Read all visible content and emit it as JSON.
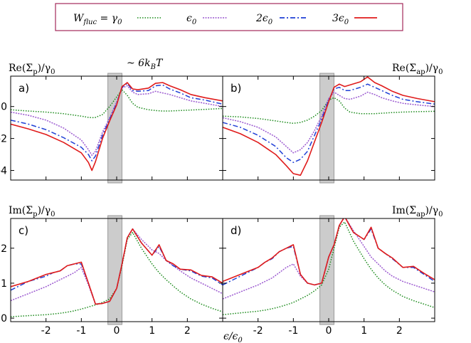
{
  "legend": {
    "entries": [
      {
        "label_main": "W",
        "label_sub": "fluc",
        "label_rest": " = γ",
        "label_rest_sub": "0",
        "series": "gamma0"
      },
      {
        "label_main": "ϵ",
        "label_sub": "0",
        "series": "eps0"
      },
      {
        "label_main": "2ϵ",
        "label_sub": "0",
        "series": "2eps0"
      },
      {
        "label_main": "3ϵ",
        "label_sub": "0",
        "series": "3eps0"
      }
    ]
  },
  "annotation": {
    "prefix": "~ 6k",
    "sub": "B",
    "suffix": "T"
  },
  "ylabels": {
    "a": {
      "main": "Re(Σ",
      "sub": "p",
      "tail": ")/γ",
      "tail_sub": "0"
    },
    "b": {
      "main": "Re(Σ",
      "sub": "ap",
      "tail": ")/γ",
      "tail_sub": "0"
    },
    "c": {
      "main": "Im(Σ",
      "sub": "p",
      "tail": ")/γ",
      "tail_sub": "0"
    },
    "d": {
      "main": "Im(Σ",
      "sub": "ap",
      "tail": ")/γ",
      "tail_sub": "0"
    }
  },
  "xlabel": {
    "main": "ϵ/ϵ",
    "sub": "0"
  },
  "panel_labels": {
    "a": "a)",
    "b": "b)",
    "c": "c)",
    "d": "d)"
  },
  "chart_data": {
    "type": "line",
    "xlim": [
      -3,
      3
    ],
    "shaded_band": [
      -0.25,
      0.15
    ],
    "series_styles": [
      {
        "key": "gamma0",
        "color": "#1a8a1a",
        "dash": "dotted"
      },
      {
        "key": "eps0",
        "color": "#9b59d0",
        "dash": "dotted-dense"
      },
      {
        "key": "2eps0",
        "color": "#1f3fd6",
        "dash": "dash-dot"
      },
      {
        "key": "3eps0",
        "color": "#e01b1b",
        "dash": "solid"
      }
    ],
    "panels": [
      {
        "id": "a",
        "ylim": [
          -4.6,
          1.9
        ],
        "yticks": [
          0,
          -2,
          -4
        ],
        "xticks": [],
        "x": [
          -3,
          -2.5,
          -2,
          -1.5,
          -1,
          -0.8,
          -0.7,
          -0.6,
          -0.4,
          -0.2,
          0,
          0.15,
          0.3,
          0.45,
          0.6,
          0.9,
          1.1,
          1.3,
          1.5,
          1.8,
          2.1,
          2.5,
          3
        ],
        "series": {
          "gamma0": [
            -0.2,
            -0.28,
            -0.35,
            -0.45,
            -0.6,
            -0.68,
            -0.7,
            -0.68,
            -0.5,
            0.0,
            0.6,
            1.05,
            0.7,
            0.2,
            -0.05,
            -0.2,
            -0.25,
            -0.28,
            -0.28,
            -0.25,
            -0.22,
            -0.18,
            -0.12
          ],
          "eps0": [
            -0.35,
            -0.55,
            -0.85,
            -1.35,
            -2.1,
            -2.7,
            -3.05,
            -2.8,
            -1.6,
            -0.7,
            0.3,
            1.15,
            1.3,
            0.9,
            0.75,
            0.8,
            0.95,
            0.85,
            0.75,
            0.55,
            0.35,
            0.2,
            0.0
          ],
          "2eps0": [
            -0.85,
            -1.1,
            -1.45,
            -1.95,
            -2.55,
            -3.0,
            -3.4,
            -3.1,
            -1.8,
            -0.8,
            0.2,
            1.2,
            1.45,
            1.0,
            0.95,
            1.0,
            1.3,
            1.35,
            1.1,
            0.85,
            0.55,
            0.4,
            0.15
          ],
          "3eps0": [
            -1.1,
            -1.4,
            -1.75,
            -2.25,
            -2.9,
            -3.5,
            -4.0,
            -3.45,
            -2.0,
            -0.9,
            0.1,
            1.25,
            1.5,
            1.1,
            1.05,
            1.15,
            1.45,
            1.5,
            1.3,
            1.05,
            0.75,
            0.55,
            0.35
          ]
        }
      },
      {
        "id": "b",
        "ylim": [
          -4.6,
          1.9
        ],
        "yticks": [],
        "xticks": [],
        "x": [
          -3,
          -2.5,
          -2,
          -1.5,
          -1.2,
          -1,
          -0.8,
          -0.6,
          -0.4,
          -0.2,
          0,
          0.15,
          0.3,
          0.45,
          0.6,
          0.9,
          1.1,
          1.3,
          1.5,
          1.8,
          2.1,
          2.5,
          3
        ],
        "series": {
          "gamma0": [
            -0.6,
            -0.65,
            -0.75,
            -0.9,
            -1.0,
            -1.05,
            -1.0,
            -0.85,
            -0.6,
            -0.25,
            0.4,
            0.55,
            0.35,
            -0.1,
            -0.35,
            -0.45,
            -0.45,
            -0.45,
            -0.42,
            -0.38,
            -0.35,
            -0.32,
            -0.3
          ],
          "eps0": [
            -0.7,
            -0.95,
            -1.3,
            -1.9,
            -2.5,
            -2.9,
            -2.7,
            -2.25,
            -1.5,
            -0.6,
            0.5,
            0.9,
            0.7,
            0.5,
            0.45,
            0.65,
            0.9,
            0.75,
            0.55,
            0.35,
            0.2,
            0.1,
            0.0
          ],
          "2eps0": [
            -1.0,
            -1.3,
            -1.8,
            -2.5,
            -3.2,
            -3.5,
            -3.3,
            -2.8,
            -1.8,
            -0.8,
            0.4,
            1.1,
            1.2,
            1.0,
            1.0,
            1.2,
            1.4,
            1.2,
            1.0,
            0.7,
            0.45,
            0.3,
            0.15
          ],
          "3eps0": [
            -1.3,
            -1.7,
            -2.25,
            -3.0,
            -3.7,
            -4.2,
            -4.3,
            -3.4,
            -2.2,
            -1.0,
            0.3,
            1.2,
            1.4,
            1.25,
            1.35,
            1.55,
            1.85,
            1.5,
            1.3,
            0.95,
            0.7,
            0.5,
            0.3
          ]
        }
      },
      {
        "id": "c",
        "ylim": [
          -0.1,
          2.85
        ],
        "yticks": [
          0,
          1,
          2
        ],
        "xticks": [
          -2,
          -1,
          0,
          1,
          2
        ],
        "x": [
          -3,
          -2.5,
          -2,
          -1.8,
          -1.6,
          -1.4,
          -1.2,
          -1.0,
          -0.8,
          -0.6,
          -0.4,
          -0.2,
          0.0,
          0.15,
          0.3,
          0.45,
          0.7,
          1.0,
          1.2,
          1.4,
          1.6,
          1.8,
          2.1,
          2.4,
          2.7,
          3.0
        ],
        "series": {
          "gamma0": [
            0.04,
            0.07,
            0.1,
            0.12,
            0.14,
            0.17,
            0.21,
            0.26,
            0.32,
            0.38,
            0.45,
            0.55,
            0.85,
            1.5,
            2.25,
            2.45,
            2.0,
            1.55,
            1.3,
            1.1,
            0.92,
            0.75,
            0.55,
            0.4,
            0.28,
            0.18
          ],
          "eps0": [
            0.5,
            0.7,
            0.9,
            1.0,
            1.1,
            1.2,
            1.3,
            1.45,
            0.95,
            0.4,
            0.42,
            0.48,
            0.85,
            1.55,
            2.3,
            2.55,
            2.25,
            1.95,
            1.85,
            1.65,
            1.5,
            1.35,
            1.15,
            1.0,
            0.85,
            0.7
          ],
          "2eps0": [
            0.8,
            1.05,
            1.2,
            1.3,
            1.35,
            1.5,
            1.55,
            1.55,
            1.0,
            0.4,
            0.42,
            0.48,
            0.85,
            1.55,
            2.3,
            2.55,
            2.15,
            1.8,
            2.05,
            1.65,
            1.5,
            1.4,
            1.35,
            1.2,
            1.15,
            0.95
          ],
          "3eps0": [
            0.9,
            1.05,
            1.25,
            1.3,
            1.35,
            1.5,
            1.55,
            1.6,
            1.0,
            0.4,
            0.42,
            0.48,
            0.85,
            1.55,
            2.3,
            2.55,
            2.15,
            1.8,
            2.1,
            1.65,
            1.55,
            1.4,
            1.38,
            1.22,
            1.18,
            1.0
          ]
        }
      },
      {
        "id": "d",
        "ylim": [
          -0.1,
          2.85
        ],
        "yticks": [],
        "xticks": [
          -2,
          -1,
          0,
          1,
          2
        ],
        "x": [
          -3,
          -2.5,
          -2,
          -1.8,
          -1.6,
          -1.4,
          -1.2,
          -1.0,
          -0.8,
          -0.6,
          -0.4,
          -0.2,
          0.0,
          0.15,
          0.3,
          0.45,
          0.7,
          1.0,
          1.2,
          1.4,
          1.6,
          1.8,
          2.1,
          2.4,
          2.7,
          3.0
        ],
        "series": {
          "gamma0": [
            0.1,
            0.15,
            0.2,
            0.23,
            0.27,
            0.32,
            0.38,
            0.45,
            0.55,
            0.65,
            0.78,
            0.95,
            1.4,
            2.0,
            2.6,
            2.75,
            2.2,
            1.7,
            1.4,
            1.15,
            0.95,
            0.8,
            0.62,
            0.5,
            0.4,
            0.3
          ],
          "eps0": [
            0.55,
            0.75,
            0.95,
            1.05,
            1.15,
            1.3,
            1.45,
            1.55,
            1.2,
            1.0,
            0.95,
            1.0,
            1.75,
            2.1,
            2.65,
            2.9,
            2.5,
            2.05,
            1.75,
            1.55,
            1.35,
            1.2,
            1.05,
            0.95,
            0.85,
            0.75
          ],
          "2eps0": [
            0.95,
            1.2,
            1.45,
            1.6,
            1.7,
            1.9,
            2.0,
            2.05,
            1.25,
            1.0,
            0.95,
            1.0,
            1.75,
            2.1,
            2.65,
            2.9,
            2.45,
            2.25,
            2.55,
            2.0,
            1.85,
            1.7,
            1.45,
            1.45,
            1.25,
            1.05
          ],
          "3eps0": [
            1.05,
            1.25,
            1.45,
            1.6,
            1.72,
            1.9,
            2.0,
            2.1,
            1.25,
            1.0,
            0.95,
            1.0,
            1.75,
            2.1,
            2.65,
            2.9,
            2.45,
            2.25,
            2.6,
            2.0,
            1.85,
            1.72,
            1.45,
            1.48,
            1.28,
            1.1
          ]
        }
      }
    ]
  }
}
